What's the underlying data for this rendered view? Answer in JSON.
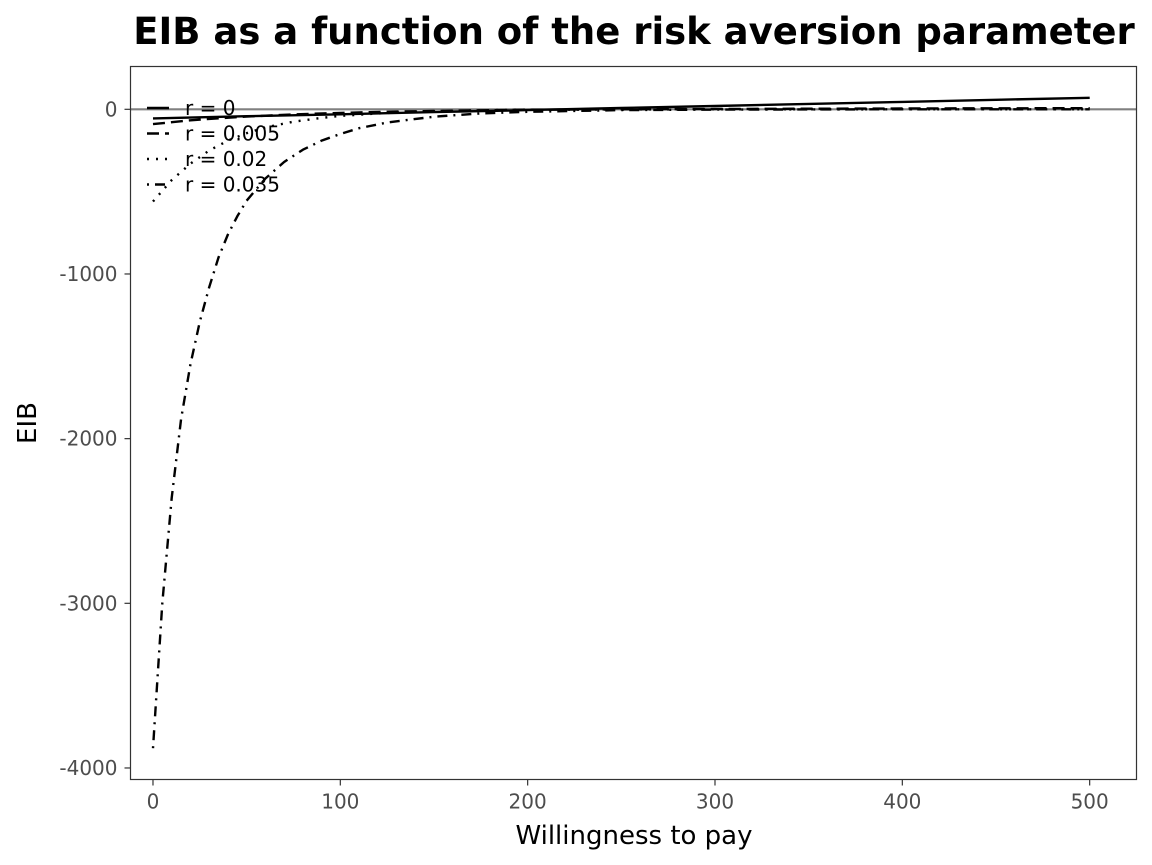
{
  "chart_data": {
    "type": "line",
    "title": "EIB as a function of the risk aversion parameter",
    "xlabel": "Willingness to pay",
    "ylabel": "EIB",
    "xlim": [
      -12,
      525
    ],
    "ylim": [
      -4070,
      260
    ],
    "x_ticks": [
      0,
      100,
      200,
      300,
      400,
      500
    ],
    "y_ticks": [
      0,
      -1000,
      -2000,
      -3000,
      -4000
    ],
    "x_tick_labels": [
      "0",
      "100",
      "200",
      "300",
      "400",
      "500"
    ],
    "y_tick_labels": [
      "0",
      "-1000",
      "-2000",
      "-3000",
      "-4000"
    ],
    "grid": false,
    "legend_position": "top-left inside",
    "reference_line": {
      "y": 0,
      "color": "#808080"
    },
    "series": [
      {
        "name": "r = 0",
        "linetype": "solid",
        "x": [
          0,
          50,
          100,
          150,
          200,
          250,
          300,
          350,
          400,
          450,
          500
        ],
        "y": [
          -55,
          -42,
          -30,
          -17,
          -5,
          8,
          20,
          33,
          45,
          58,
          70
        ]
      },
      {
        "name": "r = 0.005",
        "linetype": "dashed",
        "x": [
          0,
          10,
          20,
          30,
          50,
          75,
          100,
          125,
          150,
          175,
          200,
          250,
          300,
          350,
          400,
          450,
          500
        ],
        "y": [
          -90,
          -78,
          -67,
          -58,
          -44,
          -31,
          -22,
          -15,
          -10,
          -6,
          -3,
          0,
          2,
          4,
          5,
          6,
          7
        ]
      },
      {
        "name": "r = 0.02",
        "linetype": "dotted",
        "x": [
          0,
          10,
          20,
          30,
          40,
          50,
          60,
          75,
          90,
          100,
          125,
          150,
          175,
          200,
          250,
          300,
          400,
          500
        ],
        "y": [
          -560,
          -430,
          -330,
          -250,
          -190,
          -145,
          -110,
          -75,
          -52,
          -40,
          -22,
          -12,
          -6,
          -3,
          -1,
          0,
          0,
          0
        ]
      },
      {
        "name": "r = 0.035",
        "linetype": "dotdash",
        "x": [
          0,
          5,
          10,
          15,
          20,
          25,
          30,
          35,
          40,
          45,
          50,
          60,
          70,
          80,
          90,
          100,
          110,
          125,
          150,
          175,
          200,
          250,
          300,
          400,
          500
        ],
        "y": [
          -3880,
          -3000,
          -2360,
          -1880,
          -1550,
          -1290,
          -1080,
          -900,
          -760,
          -650,
          -555,
          -420,
          -320,
          -245,
          -190,
          -150,
          -115,
          -80,
          -45,
          -25,
          -15,
          -5,
          -2,
          0,
          0
        ]
      }
    ]
  }
}
